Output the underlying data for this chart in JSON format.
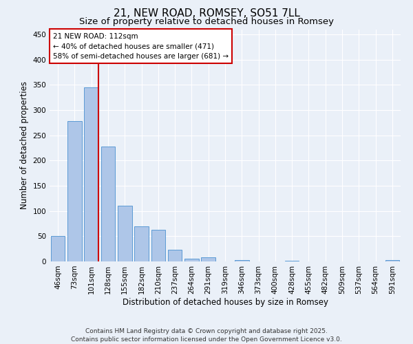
{
  "title1": "21, NEW ROAD, ROMSEY, SO51 7LL",
  "title2": "Size of property relative to detached houses in Romsey",
  "categories": [
    "46sqm",
    "73sqm",
    "101sqm",
    "128sqm",
    "155sqm",
    "182sqm",
    "210sqm",
    "237sqm",
    "264sqm",
    "291sqm",
    "319sqm",
    "346sqm",
    "373sqm",
    "400sqm",
    "428sqm",
    "455sqm",
    "482sqm",
    "509sqm",
    "537sqm",
    "564sqm",
    "591sqm"
  ],
  "values": [
    51,
    278,
    345,
    228,
    110,
    70,
    63,
    23,
    5,
    8,
    0,
    3,
    0,
    0,
    2,
    0,
    0,
    0,
    0,
    0,
    3
  ],
  "bar_color": "#aec6e8",
  "bar_edge_color": "#5b9bd5",
  "ylabel": "Number of detached properties",
  "xlabel": "Distribution of detached houses by size in Romsey",
  "ylim": [
    0,
    460
  ],
  "yticks": [
    0,
    50,
    100,
    150,
    200,
    250,
    300,
    350,
    400,
    450
  ],
  "vline_x_idx": 2,
  "vline_color": "#cc0000",
  "annotation_title": "21 NEW ROAD: 112sqm",
  "annotation_line1": "← 40% of detached houses are smaller (471)",
  "annotation_line2": "58% of semi-detached houses are larger (681) →",
  "annotation_box_color": "#ffffff",
  "annotation_box_edge": "#cc0000",
  "footer1": "Contains HM Land Registry data © Crown copyright and database right 2025.",
  "footer2": "Contains public sector information licensed under the Open Government Licence v3.0.",
  "bg_color": "#eaf0f8",
  "plot_bg_color": "#eaf0f8",
  "grid_color": "#ffffff",
  "title_fontsize": 11,
  "subtitle_fontsize": 9.5,
  "axis_label_fontsize": 8.5,
  "tick_fontsize": 7.5,
  "annotation_fontsize": 7.5,
  "footer_fontsize": 6.5
}
